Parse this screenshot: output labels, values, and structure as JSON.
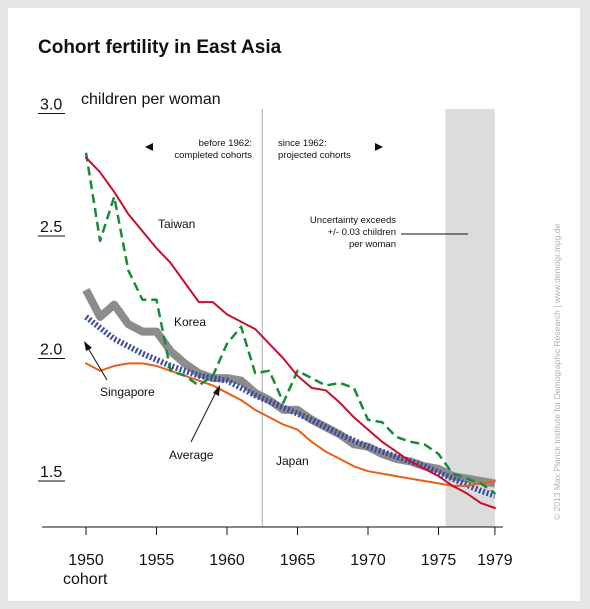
{
  "chart_data": {
    "type": "line",
    "title": "Cohort fertility in East Asia",
    "ylabel": "children per woman",
    "xlabel": "cohort",
    "xlim": [
      1947,
      1979.5
    ],
    "ylim": [
      1.35,
      3.0
    ],
    "x_ticks": [
      {
        "value": 1950,
        "label": "1950"
      },
      {
        "value": 1955,
        "label": "1955"
      },
      {
        "value": 1960,
        "label": "1960"
      },
      {
        "value": 1965,
        "label": "1965"
      },
      {
        "value": 1970,
        "label": "1970"
      },
      {
        "value": 1975,
        "label": "1975"
      },
      {
        "value": 1979,
        "label": "1979"
      }
    ],
    "y_ticks": [
      {
        "value": 3.0,
        "label": "3.0"
      },
      {
        "value": 2.5,
        "label": "2.5"
      },
      {
        "value": 2.0,
        "label": "2.0"
      },
      {
        "value": 1.5,
        "label": "1.5"
      }
    ],
    "divider_x": 1962.5,
    "uncertainty_band": [
      1975.5,
      1979
    ],
    "annotations": {
      "left_top": "before 1962:",
      "left_bottom": "completed cohorts",
      "right_top": "since 1962:",
      "right_bottom": "projected cohorts",
      "uncertainty_1": "Uncertainty exceeds",
      "uncertainty_2": "+/- 0.03 children",
      "uncertainty_3": "per woman",
      "watermark": "© 2013 Max Planck Institute for Demographic Research | www.demogr.mpg.de"
    },
    "series": [
      {
        "name": "Taiwan",
        "color": "#c8102e",
        "style": "solid",
        "points": [
          [
            1950,
            2.82
          ],
          [
            1951,
            2.76
          ],
          [
            1952,
            2.68
          ],
          [
            1953,
            2.59
          ],
          [
            1954,
            2.52
          ],
          [
            1955,
            2.45
          ],
          [
            1956,
            2.39
          ],
          [
            1957,
            2.31
          ],
          [
            1958,
            2.23
          ],
          [
            1959,
            2.23
          ],
          [
            1960,
            2.18
          ],
          [
            1961,
            2.15
          ],
          [
            1962,
            2.12
          ],
          [
            1963,
            2.06
          ],
          [
            1964,
            2.0
          ],
          [
            1965,
            1.93
          ],
          [
            1966,
            1.88
          ],
          [
            1967,
            1.87
          ],
          [
            1968,
            1.82
          ],
          [
            1969,
            1.76
          ],
          [
            1970,
            1.71
          ],
          [
            1971,
            1.66
          ],
          [
            1972,
            1.62
          ],
          [
            1973,
            1.58
          ],
          [
            1974,
            1.55
          ],
          [
            1975,
            1.52
          ],
          [
            1976,
            1.48
          ],
          [
            1977,
            1.45
          ],
          [
            1978,
            1.41
          ],
          [
            1979,
            1.39
          ]
        ]
      },
      {
        "name": "Korea",
        "color": "#1a8a3a",
        "style": "dashed",
        "points": [
          [
            1950,
            2.84
          ],
          [
            1951,
            2.48
          ],
          [
            1952,
            2.66
          ],
          [
            1953,
            2.36
          ],
          [
            1954,
            2.24
          ],
          [
            1955,
            2.24
          ],
          [
            1956,
            1.95
          ],
          [
            1957,
            1.93
          ],
          [
            1958,
            1.89
          ],
          [
            1959,
            1.93
          ],
          [
            1960,
            2.06
          ],
          [
            1961,
            2.13
          ],
          [
            1962,
            1.94
          ],
          [
            1963,
            1.95
          ],
          [
            1964,
            1.82
          ],
          [
            1965,
            1.95
          ],
          [
            1966,
            1.92
          ],
          [
            1967,
            1.89
          ],
          [
            1968,
            1.9
          ],
          [
            1969,
            1.88
          ],
          [
            1970,
            1.75
          ],
          [
            1971,
            1.74
          ],
          [
            1972,
            1.68
          ],
          [
            1973,
            1.66
          ],
          [
            1974,
            1.65
          ],
          [
            1975,
            1.61
          ],
          [
            1976,
            1.53
          ],
          [
            1977,
            1.51
          ],
          [
            1978,
            1.49
          ],
          [
            1979,
            1.45
          ]
        ]
      },
      {
        "name": "Average",
        "color": "#8c8c8c",
        "style": "thick",
        "points": [
          [
            1950,
            2.28
          ],
          [
            1951,
            2.17
          ],
          [
            1952,
            2.22
          ],
          [
            1953,
            2.14
          ],
          [
            1954,
            2.11
          ],
          [
            1955,
            2.11
          ],
          [
            1956,
            2.03
          ],
          [
            1957,
            1.98
          ],
          [
            1958,
            1.94
          ],
          [
            1959,
            1.92
          ],
          [
            1960,
            1.92
          ],
          [
            1961,
            1.91
          ],
          [
            1962,
            1.86
          ],
          [
            1963,
            1.83
          ],
          [
            1964,
            1.79
          ],
          [
            1965,
            1.79
          ],
          [
            1966,
            1.75
          ],
          [
            1967,
            1.72
          ],
          [
            1968,
            1.69
          ],
          [
            1969,
            1.65
          ],
          [
            1970,
            1.64
          ],
          [
            1971,
            1.61
          ],
          [
            1972,
            1.59
          ],
          [
            1973,
            1.58
          ],
          [
            1974,
            1.56
          ],
          [
            1975,
            1.55
          ],
          [
            1976,
            1.52
          ],
          [
            1977,
            1.51
          ],
          [
            1978,
            1.5
          ],
          [
            1979,
            1.49
          ]
        ]
      },
      {
        "name": "Singapore",
        "color": "#3d4aa0",
        "style": "dotted",
        "points": [
          [
            1950,
            2.17
          ],
          [
            1952,
            2.08
          ],
          [
            1954,
            2.02
          ],
          [
            1956,
            1.97
          ],
          [
            1958,
            1.93
          ],
          [
            1960,
            1.91
          ],
          [
            1962,
            1.85
          ],
          [
            1964,
            1.8
          ],
          [
            1966,
            1.75
          ],
          [
            1968,
            1.69
          ],
          [
            1970,
            1.64
          ],
          [
            1972,
            1.6
          ],
          [
            1974,
            1.56
          ],
          [
            1976,
            1.51
          ],
          [
            1978,
            1.46
          ],
          [
            1979,
            1.44
          ]
        ]
      },
      {
        "name": "Japan",
        "color": "#e8601a",
        "style": "solid",
        "points": [
          [
            1950,
            1.98
          ],
          [
            1951,
            1.95
          ],
          [
            1952,
            1.97
          ],
          [
            1953,
            1.98
          ],
          [
            1954,
            1.98
          ],
          [
            1955,
            1.97
          ],
          [
            1956,
            1.95
          ],
          [
            1957,
            1.93
          ],
          [
            1958,
            1.91
          ],
          [
            1959,
            1.89
          ],
          [
            1960,
            1.86
          ],
          [
            1961,
            1.83
          ],
          [
            1962,
            1.79
          ],
          [
            1963,
            1.76
          ],
          [
            1964,
            1.73
          ],
          [
            1965,
            1.71
          ],
          [
            1966,
            1.66
          ],
          [
            1967,
            1.62
          ],
          [
            1968,
            1.59
          ],
          [
            1969,
            1.56
          ],
          [
            1970,
            1.54
          ],
          [
            1971,
            1.53
          ],
          [
            1972,
            1.52
          ],
          [
            1973,
            1.51
          ],
          [
            1974,
            1.5
          ],
          [
            1975,
            1.49
          ],
          [
            1976,
            1.48
          ],
          [
            1977,
            1.48
          ],
          [
            1978,
            1.49
          ],
          [
            1979,
            1.5
          ]
        ]
      }
    ]
  }
}
